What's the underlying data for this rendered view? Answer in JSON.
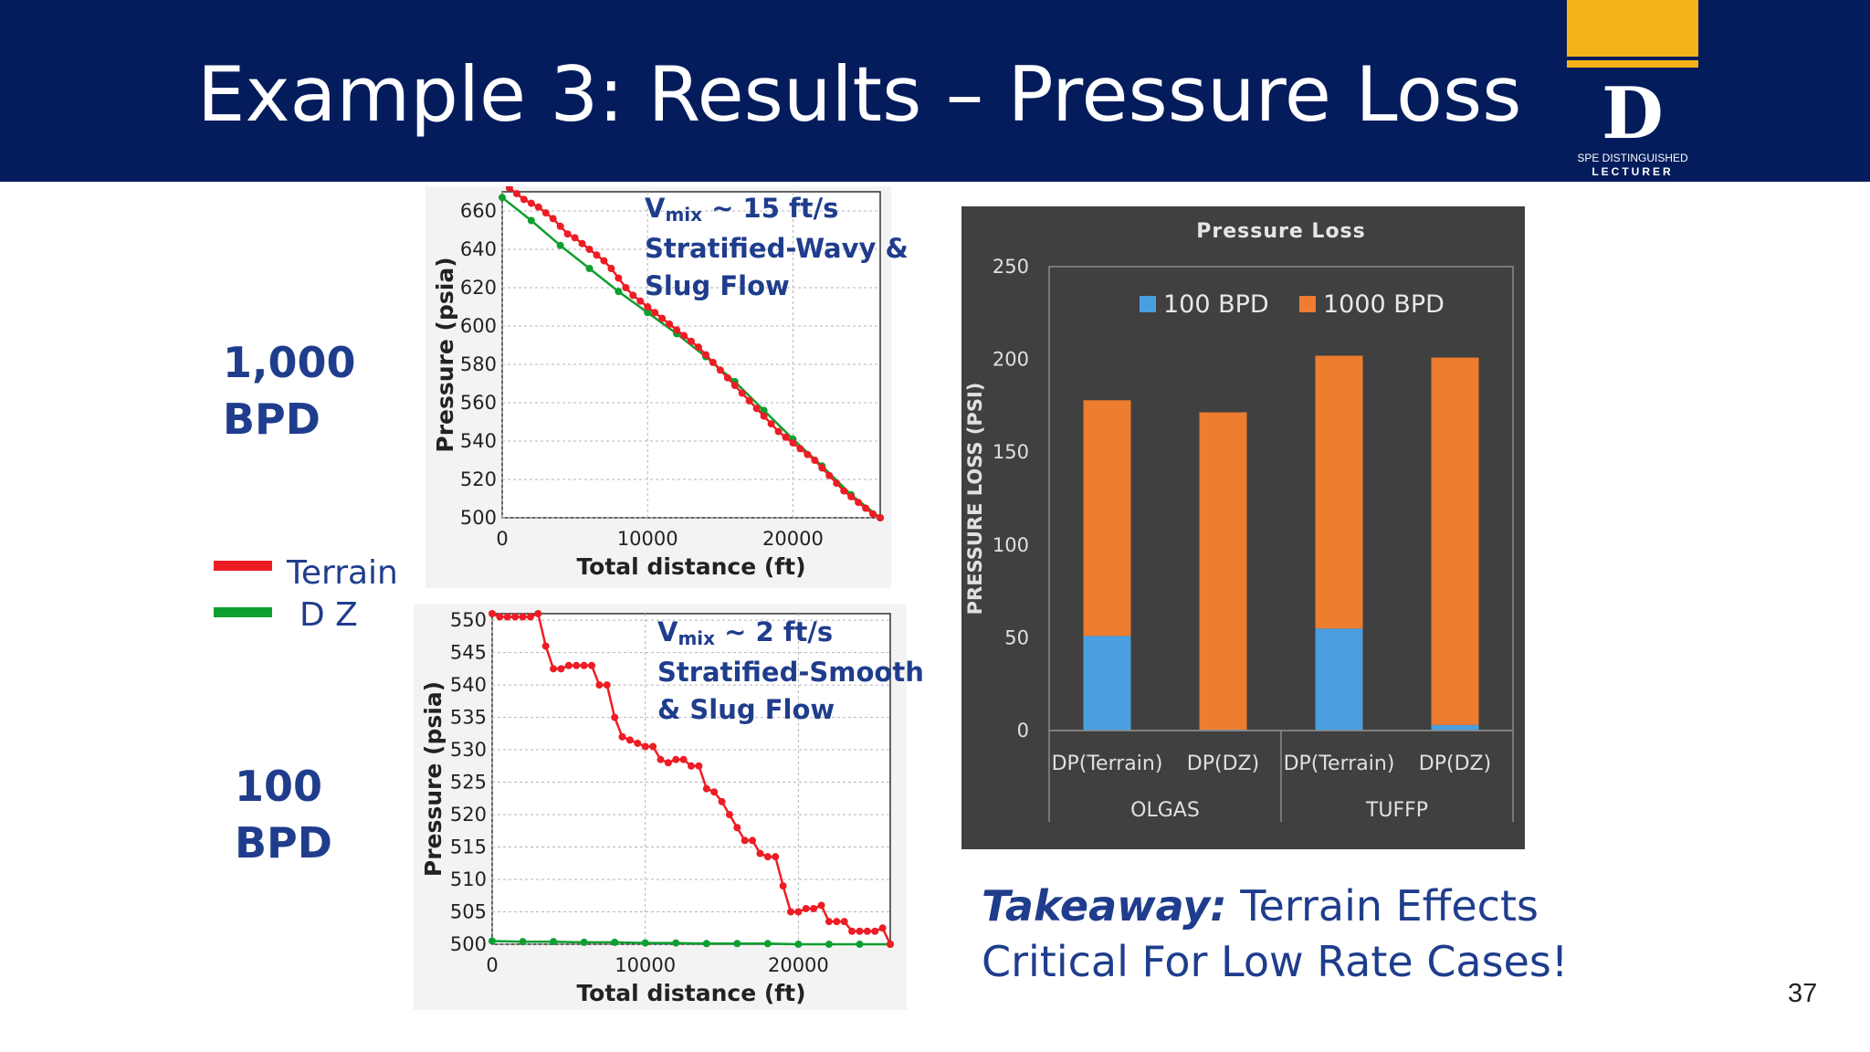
{
  "slide": {
    "title": "Example 3: Results – Pressure Loss",
    "page_number": "37",
    "logo": {
      "letter": "D",
      "line1": "SPE DISTINGUISHED",
      "line2": "LECTURER"
    },
    "rate_labels": {
      "high": [
        "1,000",
        "BPD"
      ],
      "low": [
        "100",
        "BPD"
      ]
    },
    "legend": [
      {
        "label": "Terrain",
        "color": "#ee1c24"
      },
      {
        "label": "D Z",
        "color": "#0d9f2f"
      }
    ],
    "takeaway": {
      "lead": "Takeaway:",
      "line1_rest": " Terrain Effects",
      "line2": "Critical For Low Rate Cases!"
    },
    "colors": {
      "header": "#041c5c",
      "accent": "#f5b31a",
      "text": "#1f3d8c",
      "terrain": "#ee1c24",
      "dz": "#0d9f2f"
    }
  },
  "chart_data": [
    {
      "type": "line",
      "xlabel": "Total distance (ft)",
      "ylabel": "Pressure (psia)",
      "xlim": [
        0,
        26000
      ],
      "ylim": [
        500,
        670
      ],
      "xticks": [
        0,
        10000,
        20000
      ],
      "yticks": [
        500,
        520,
        540,
        560,
        580,
        600,
        620,
        640,
        660
      ],
      "grid": true,
      "annotation": {
        "vmix_prefix": "V",
        "vmix_sub": "mix",
        "vmix_rest": " ~ 15 ft/s",
        "line2": "Stratified-Wavy &",
        "line3": "Slug Flow"
      },
      "series": [
        {
          "name": "Terrain",
          "color": "#ee1c24",
          "x": [
            0,
            500,
            1000,
            1500,
            2000,
            2500,
            3000,
            3500,
            4000,
            4500,
            5000,
            5500,
            6000,
            6500,
            7000,
            7500,
            8000,
            8500,
            9000,
            9500,
            10000,
            10500,
            11000,
            11500,
            12000,
            12500,
            13000,
            13500,
            14000,
            14500,
            15000,
            15500,
            16000,
            16500,
            17000,
            17500,
            18000,
            18500,
            19000,
            19500,
            20000,
            20500,
            21000,
            21500,
            22000,
            22500,
            23000,
            23500,
            24000,
            24500,
            25000,
            25500,
            26000
          ],
          "y": [
            675,
            672,
            669,
            666,
            664,
            662,
            659,
            656,
            652,
            648,
            646,
            643,
            640,
            637,
            634,
            630,
            625,
            620,
            616,
            613,
            610,
            607,
            604,
            601,
            598,
            595,
            592,
            589,
            585,
            581,
            577,
            573,
            569,
            565,
            561,
            557,
            553,
            549,
            545,
            542,
            539,
            536,
            533,
            530,
            526,
            522,
            518,
            514,
            511,
            508,
            505,
            502,
            500
          ]
        },
        {
          "name": "D Z",
          "color": "#0d9f2f",
          "x": [
            0,
            2000,
            4000,
            6000,
            8000,
            10000,
            12000,
            14000,
            16000,
            18000,
            20000,
            22000,
            24000,
            26000
          ],
          "y": [
            667,
            655,
            642,
            630,
            618,
            607,
            596,
            584,
            571,
            556,
            541,
            527,
            512,
            500
          ]
        }
      ]
    },
    {
      "type": "line",
      "xlabel": "Total distance (ft)",
      "ylabel": "Pressure (psia)",
      "xlim": [
        0,
        26000
      ],
      "ylim": [
        500,
        551
      ],
      "xticks": [
        0,
        10000,
        20000
      ],
      "yticks": [
        500,
        505,
        510,
        515,
        520,
        525,
        530,
        535,
        540,
        545,
        550
      ],
      "grid": true,
      "annotation": {
        "vmix_prefix": "V",
        "vmix_sub": "mix",
        "vmix_rest": " ~ 2 ft/s",
        "line2": "Stratified-Smooth",
        "line3": "& Slug Flow"
      },
      "series": [
        {
          "name": "Terrain",
          "color": "#ee1c24",
          "x": [
            0,
            500,
            1000,
            1500,
            2000,
            2500,
            3000,
            3500,
            4000,
            4500,
            5000,
            5500,
            6000,
            6500,
            7000,
            7500,
            8000,
            8500,
            9000,
            9500,
            10000,
            10500,
            11000,
            11500,
            12000,
            12500,
            13000,
            13500,
            14000,
            14500,
            15000,
            15500,
            16000,
            16500,
            17000,
            17500,
            18000,
            18500,
            19000,
            19500,
            20000,
            20500,
            21000,
            21500,
            22000,
            22500,
            23000,
            23500,
            24000,
            24500,
            25000,
            25500,
            26000
          ],
          "y": [
            551,
            550.5,
            550.5,
            550.5,
            550.5,
            550.5,
            551,
            546,
            542.5,
            542.5,
            543,
            543,
            543,
            543,
            540,
            540,
            535,
            532,
            531.5,
            531,
            530.5,
            530.5,
            528.5,
            528,
            528.5,
            528.5,
            527.5,
            527.5,
            524,
            523.5,
            522,
            520,
            518,
            516,
            516,
            514,
            513.5,
            513.5,
            509,
            505,
            505,
            505.5,
            505.5,
            506,
            503.5,
            503.5,
            503.5,
            502,
            502,
            502,
            502,
            502.5,
            500
          ]
        },
        {
          "name": "D Z",
          "color": "#0d9f2f",
          "x": [
            0,
            2000,
            4000,
            6000,
            8000,
            10000,
            12000,
            14000,
            16000,
            18000,
            20000,
            22000,
            24000,
            26000
          ],
          "y": [
            500.5,
            500.4,
            500.4,
            500.3,
            500.3,
            500.2,
            500.2,
            500.1,
            500.1,
            500.1,
            500,
            500,
            500,
            500
          ]
        }
      ]
    },
    {
      "type": "bar",
      "stacked": true,
      "title": "Pressure Loss",
      "ylabel": "PRESSURE LOSS (PSI)",
      "ylim": [
        0,
        250
      ],
      "yticks": [
        0,
        50,
        100,
        150,
        200,
        250
      ],
      "categories": [
        "DP(Terrain)",
        "DP(DZ)",
        "DP(Terrain)",
        "DP(DZ)"
      ],
      "groups": [
        {
          "label": "OLGAS",
          "span": [
            0,
            1
          ]
        },
        {
          "label": "TUFFP",
          "span": [
            2,
            3
          ]
        }
      ],
      "legend_position": "top",
      "series": [
        {
          "name": "100 BPD",
          "color": "#4a9fe0",
          "values": [
            51,
            0.5,
            55,
            3
          ]
        },
        {
          "name": "1000 BPD",
          "color": "#ee7d2f",
          "values": [
            127,
            171,
            147,
            198
          ]
        }
      ],
      "background": "#404040"
    }
  ]
}
